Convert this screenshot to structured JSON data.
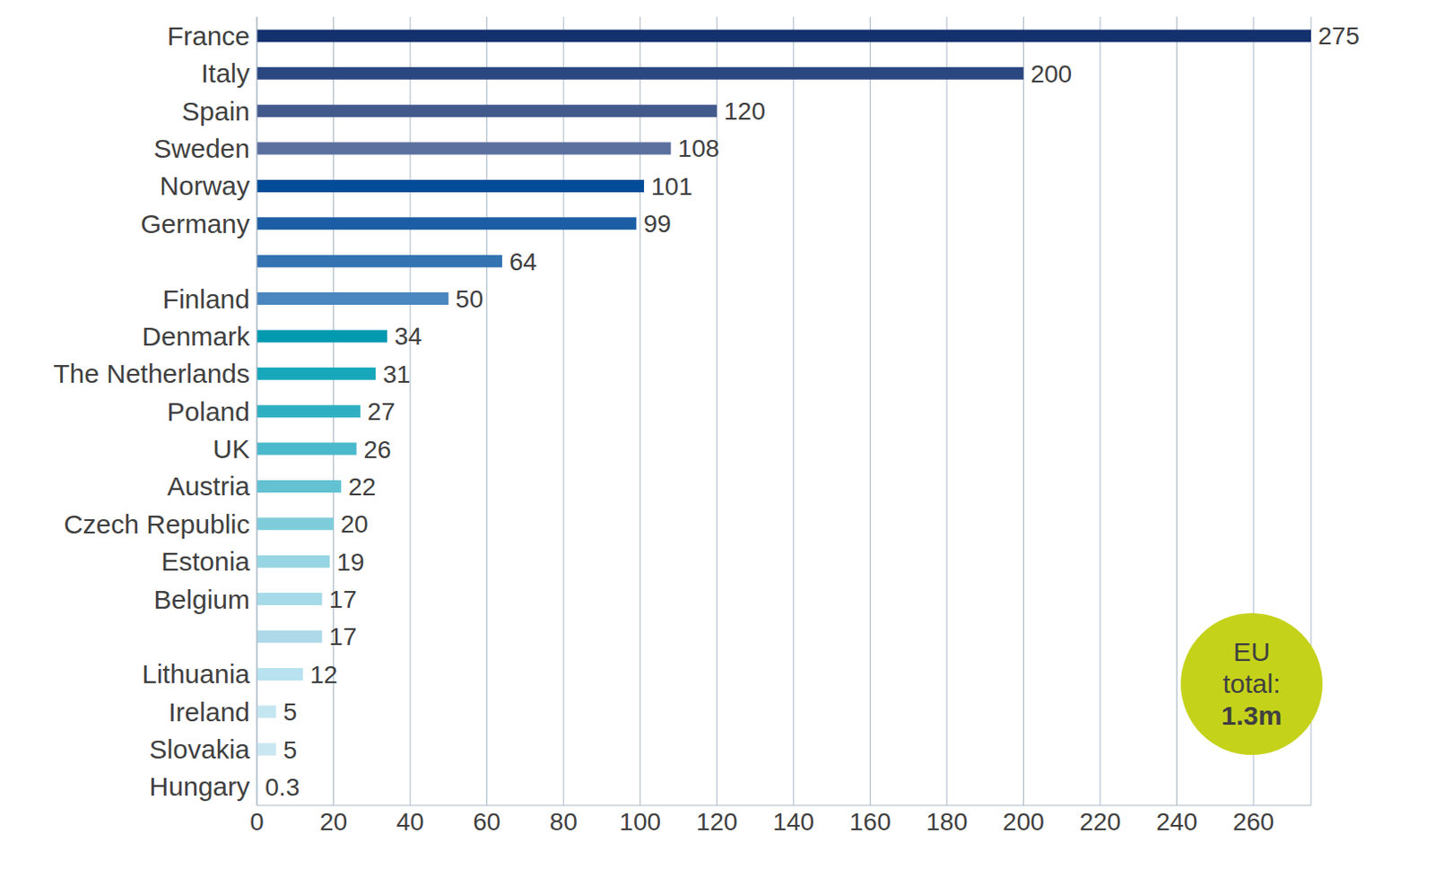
{
  "chart_data": {
    "type": "bar",
    "orientation": "horizontal",
    "categories": [
      "France",
      "Italy",
      "Spain",
      "Sweden",
      "Norway",
      "Germany",
      null,
      "Finland",
      "Denmark",
      "The Netherlands",
      "Poland",
      "UK",
      "Austria",
      "Czech Republic",
      "Estonia",
      "Belgium",
      null,
      "Lithuania",
      "Ireland",
      "Slovakia",
      "Hungary"
    ],
    "values": [
      275,
      200,
      120,
      108,
      101,
      99,
      64,
      50,
      34,
      31,
      27,
      26,
      22,
      20,
      19,
      17,
      17,
      12,
      5,
      5,
      0.3
    ],
    "colors": [
      "#14316f",
      "#2a4781",
      "#42598c",
      "#5b709e",
      "#004c98",
      "#1b5ea5",
      "#3473b2",
      "#4a86bf",
      "#009ab0",
      "#16a7bb",
      "#2fb0c2",
      "#4ab9cc",
      "#63c2d2",
      "#7fcddb",
      "#96d5e3",
      "#a6dae8",
      "#add9e8",
      "#b8e2ef",
      "#c4e6f1",
      "#c9e7f1",
      "#d0ebf3"
    ],
    "xlim": [
      0,
      275
    ],
    "xticks": [
      0,
      20,
      40,
      60,
      80,
      100,
      120,
      140,
      160,
      180,
      200,
      220,
      240,
      260
    ],
    "grid": true,
    "data_labels": true,
    "annotation": [
      "EU",
      "total:",
      "1.3m"
    ]
  }
}
